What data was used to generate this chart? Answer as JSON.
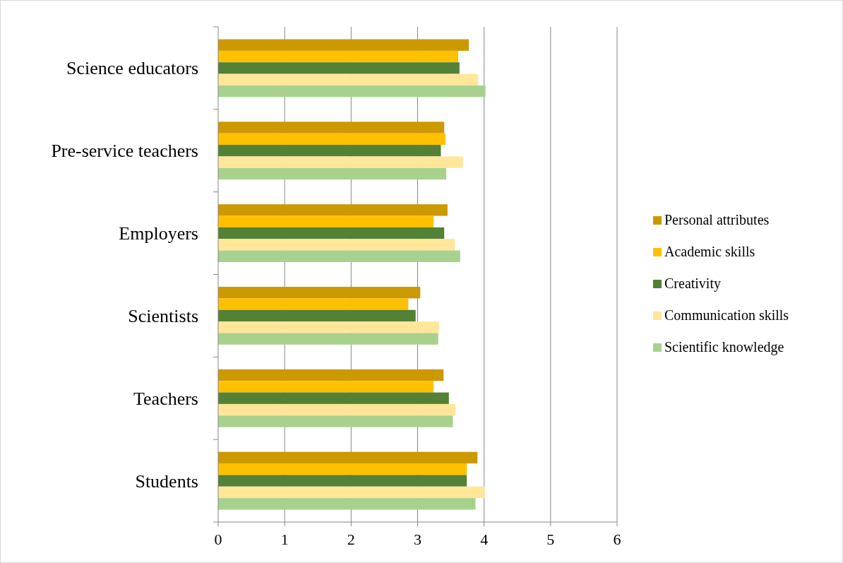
{
  "chart_data": {
    "type": "bar",
    "orientation": "horizontal",
    "categories": [
      "Science educators",
      "Pre-service teachers",
      "Employers",
      "Scientists",
      "Teachers",
      "Students"
    ],
    "series": [
      {
        "name": "Personal attributes",
        "color": "#cc9900",
        "values": [
          3.77,
          3.4,
          3.45,
          3.04,
          3.39,
          3.9
        ]
      },
      {
        "name": "Academic skills",
        "color": "#ffc000",
        "values": [
          3.61,
          3.42,
          3.24,
          2.86,
          3.24,
          3.74
        ]
      },
      {
        "name": "Creativity",
        "color": "#538135",
        "values": [
          3.63,
          3.35,
          3.4,
          2.97,
          3.47,
          3.74
        ]
      },
      {
        "name": "Communication skills",
        "color": "#ffe699",
        "values": [
          3.91,
          3.68,
          3.56,
          3.32,
          3.57,
          4.01
        ]
      },
      {
        "name": "Scientific knowledge",
        "color": "#a9d18e",
        "values": [
          4.02,
          3.43,
          3.64,
          3.31,
          3.53,
          3.87
        ]
      }
    ],
    "xlim": [
      0,
      6
    ],
    "xticks": [
      0,
      1,
      2,
      3,
      4,
      5,
      6
    ],
    "grid": "x",
    "legend": "right"
  }
}
